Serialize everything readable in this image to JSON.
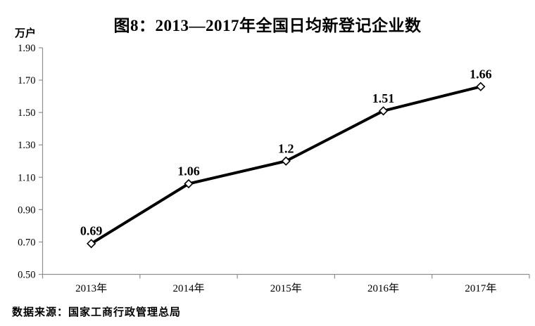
{
  "page": {
    "title": "图8：2013—2017年全国日均新登记企业数",
    "unit_label": "万户",
    "source": "数据来源：国家工商行政管理总局"
  },
  "chart_data": {
    "type": "line",
    "title": "图8：2013—2017年全国日均新登记企业数",
    "ylabel": "万户",
    "xlabel": "",
    "categories": [
      "2013年",
      "2014年",
      "2015年",
      "2016年",
      "2017年"
    ],
    "values": [
      0.69,
      1.06,
      1.2,
      1.51,
      1.66
    ],
    "point_labels": [
      "0.69",
      "1.06",
      "1.2",
      "1.51",
      "1.66"
    ],
    "ylim": [
      0.5,
      1.9
    ],
    "ytick_labels": [
      "0.50",
      "0.70",
      "0.90",
      "1.10",
      "1.30",
      "1.50",
      "1.70",
      "1.90"
    ],
    "grid": false,
    "legend_position": "none",
    "source": "数据来源：国家工商行政管理总局",
    "colors": {
      "line": "#000000",
      "marker_fill": "#ffffff",
      "marker_stroke": "#000000",
      "axis": "#8f8f8f",
      "text": "#000000",
      "background": "#ffffff"
    }
  }
}
